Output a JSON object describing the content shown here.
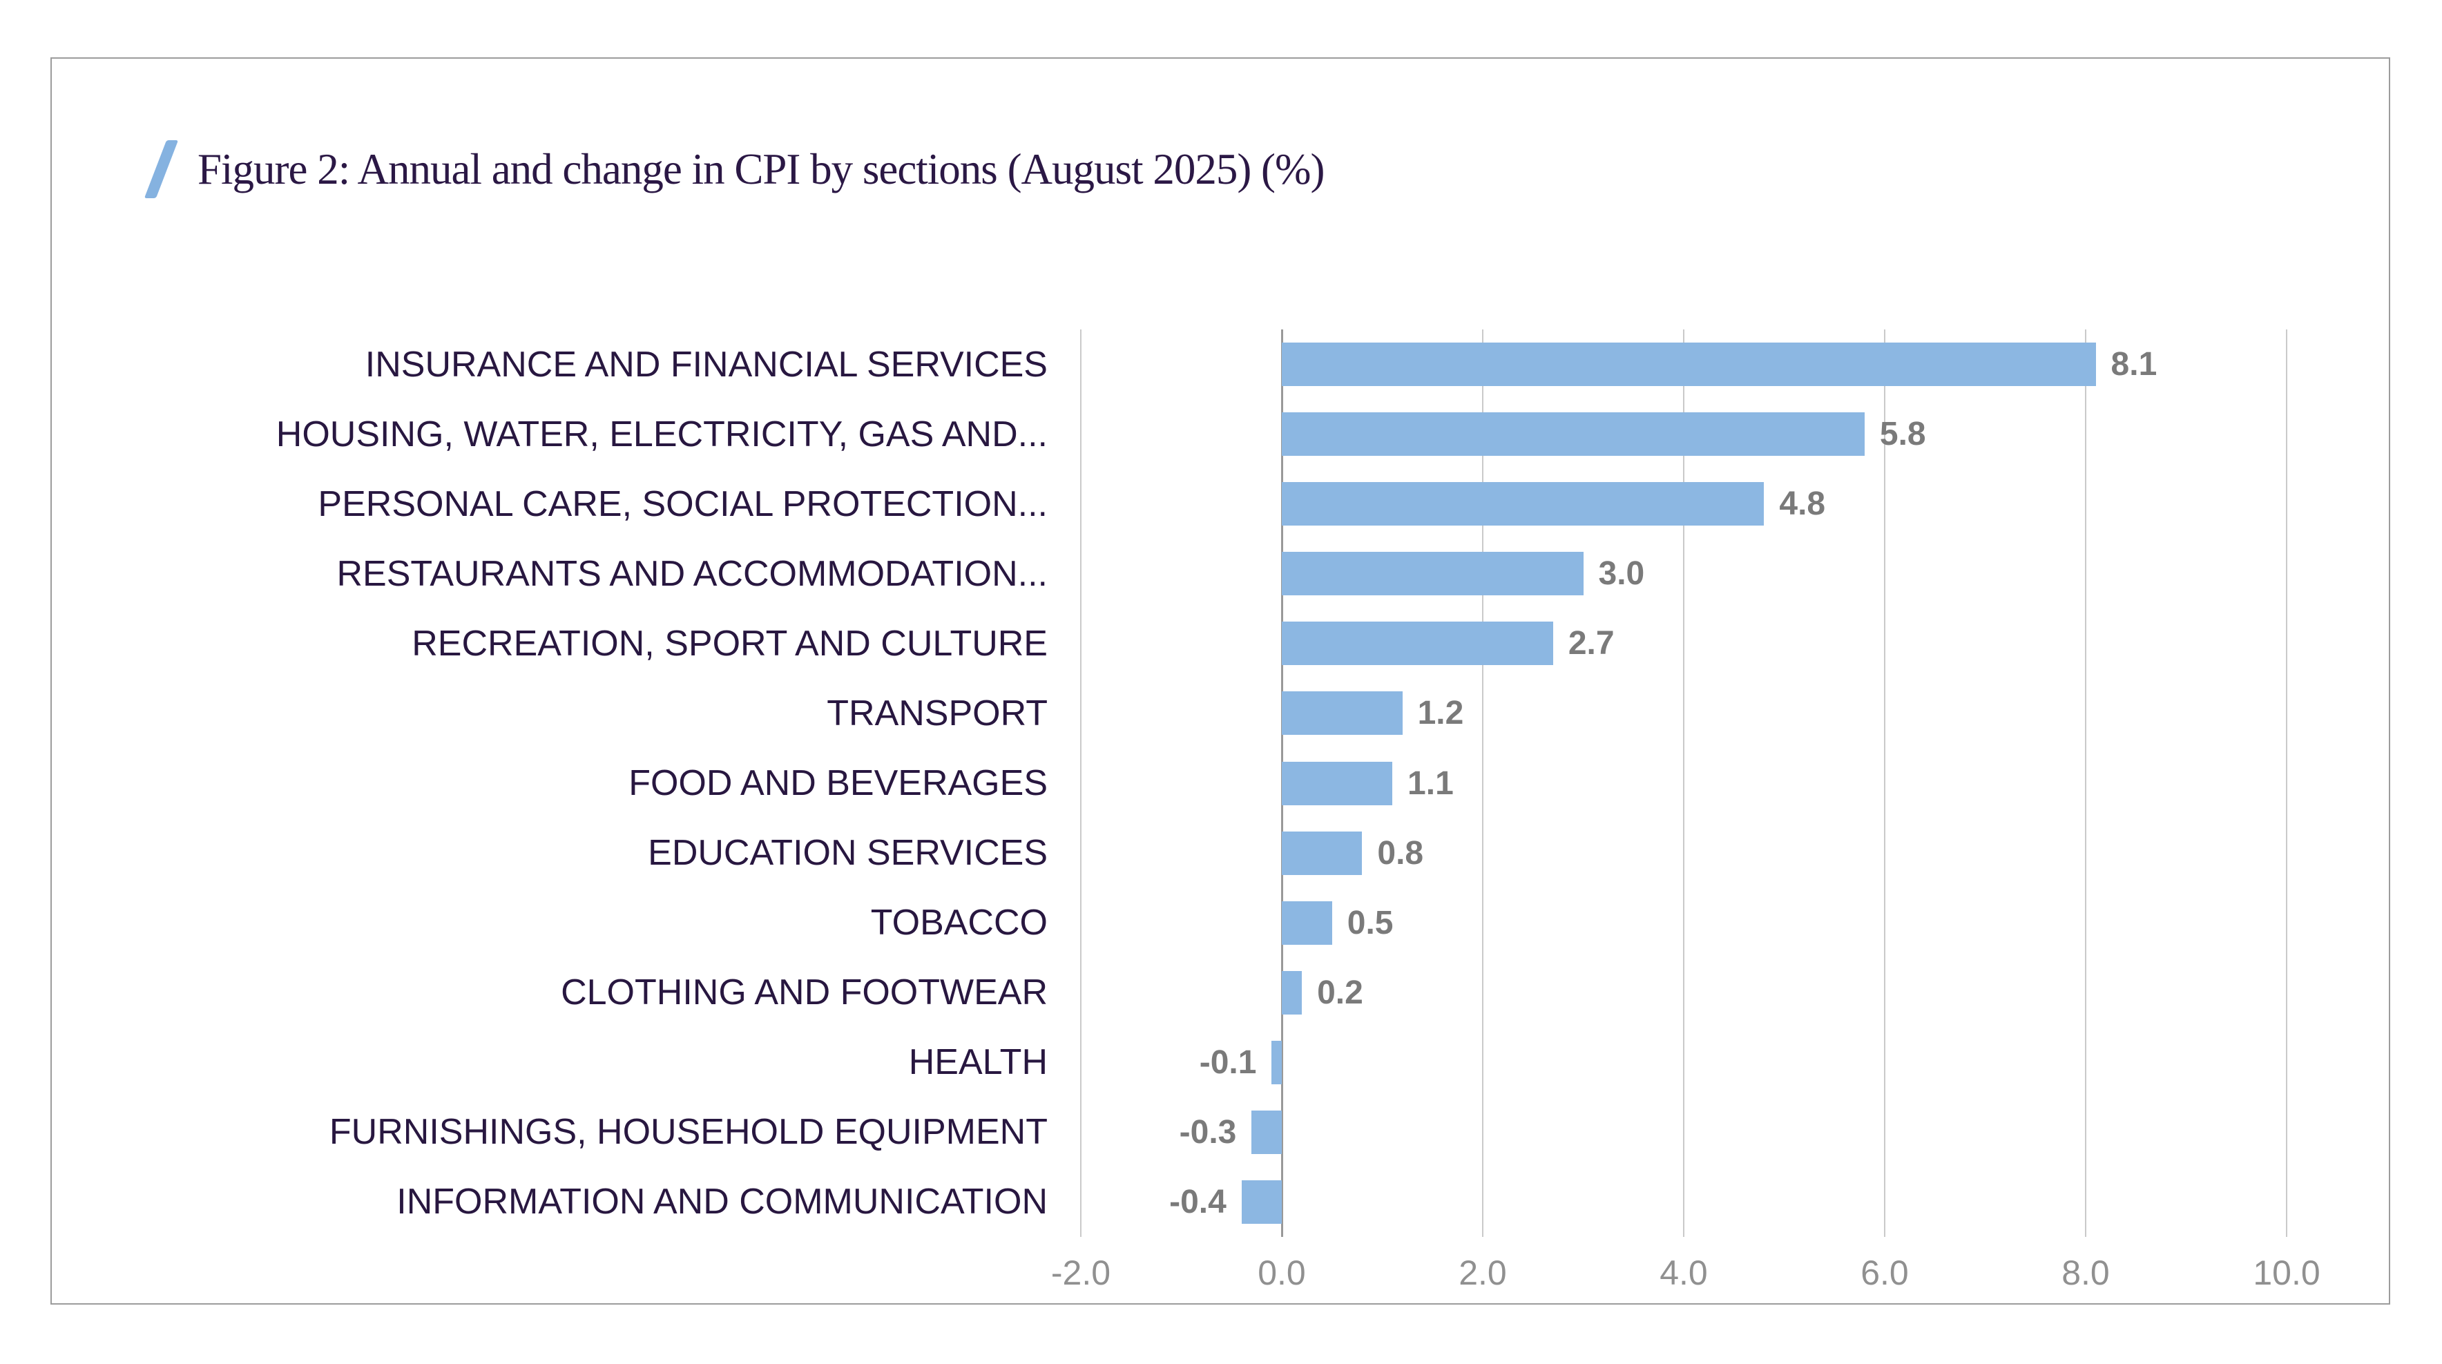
{
  "figure": {
    "title": "Figure 2: Annual and change in CPI by sections (August 2025) (%)",
    "accent_color": "#85b2e0",
    "title_color": "#2b1845",
    "card_border_color": "#9c9c9c"
  },
  "chart_data": {
    "type": "bar",
    "orientation": "horizontal",
    "title": "Figure 2: Annual and change in CPI by sections (August 2025) (%)",
    "categories": [
      "INSURANCE AND FINANCIAL SERVICES",
      "HOUSING, WATER, ELECTRICITY, GAS AND...",
      "PERSONAL CARE, SOCIAL PROTECTION...",
      "RESTAURANTS AND ACCOMMODATION...",
      "RECREATION, SPORT AND CULTURE",
      "TRANSPORT",
      "FOOD AND BEVERAGES",
      "EDUCATION SERVICES",
      "TOBACCO",
      "CLOTHING AND FOOTWEAR",
      "HEALTH",
      "FURNISHINGS, HOUSEHOLD EQUIPMENT",
      "INFORMATION AND COMMUNICATION"
    ],
    "values": [
      8.1,
      5.8,
      4.8,
      3.0,
      2.7,
      1.2,
      1.1,
      0.8,
      0.5,
      0.2,
      -0.1,
      -0.3,
      -0.4
    ],
    "value_labels": [
      "8.1",
      "5.8",
      "4.8",
      "3.0",
      "2.7",
      "1.2",
      "1.1",
      "0.8",
      "0.5",
      "0.2",
      "-0.1",
      "-0.3",
      "-0.4"
    ],
    "xlim": [
      -2,
      10
    ],
    "xticks": [
      "-2.0",
      "0.0",
      "2.0",
      "4.0",
      "6.0",
      "8.0",
      "10.0"
    ],
    "grid": true,
    "legend": "none",
    "bar_color": "#8cb7e2",
    "value_label_color": "#7a7a7a",
    "tick_label_color": "#909090",
    "category_label_color": "#281740"
  }
}
